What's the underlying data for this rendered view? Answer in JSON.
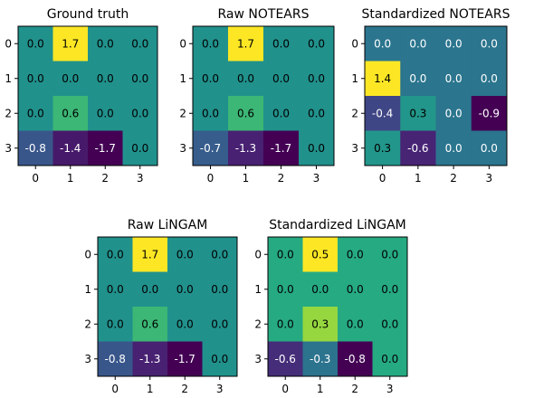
{
  "chart_data": [
    {
      "type": "heatmap",
      "title": "Ground truth",
      "x_ticks": [
        "0",
        "1",
        "2",
        "3"
      ],
      "y_ticks": [
        "0",
        "1",
        "2",
        "3"
      ],
      "values": [
        [
          0.0,
          1.7,
          0.0,
          0.0
        ],
        [
          0.0,
          0.0,
          0.0,
          0.0
        ],
        [
          0.0,
          0.6,
          0.0,
          0.0
        ],
        [
          -0.8,
          -1.4,
          -1.7,
          0.0
        ]
      ],
      "labels": [
        [
          "0.0",
          "1.7",
          "0.0",
          "0.0"
        ],
        [
          "0.0",
          "0.0",
          "0.0",
          "0.0"
        ],
        [
          "0.0",
          "0.6",
          "0.0",
          "0.0"
        ],
        [
          "-0.8",
          "-1.4",
          "-1.7",
          "0.0"
        ]
      ],
      "colormap": "viridis",
      "grid": false
    },
    {
      "type": "heatmap",
      "title": "Raw NOTEARS",
      "x_ticks": [
        "0",
        "1",
        "2",
        "3"
      ],
      "y_ticks": [
        "0",
        "1",
        "2",
        "3"
      ],
      "values": [
        [
          0.0,
          1.7,
          0.0,
          0.0
        ],
        [
          0.0,
          0.0,
          0.0,
          0.0
        ],
        [
          0.0,
          0.6,
          0.0,
          0.0
        ],
        [
          -0.7,
          -1.3,
          -1.7,
          0.0
        ]
      ],
      "labels": [
        [
          "0.0",
          "1.7",
          "0.0",
          "0.0"
        ],
        [
          "0.0",
          "0.0",
          "0.0",
          "0.0"
        ],
        [
          "0.0",
          "0.6",
          "0.0",
          "0.0"
        ],
        [
          "-0.7",
          "-1.3",
          "-1.7",
          "0.0"
        ]
      ],
      "colormap": "viridis",
      "grid": false
    },
    {
      "type": "heatmap",
      "title": "Standardized NOTEARS",
      "x_ticks": [
        "0",
        "1",
        "2",
        "3"
      ],
      "y_ticks": [
        "0",
        "1",
        "2",
        "3"
      ],
      "values": [
        [
          0.0,
          0.0,
          0.0,
          0.0
        ],
        [
          1.4,
          0.0,
          0.0,
          0.0
        ],
        [
          -0.4,
          0.3,
          0.0,
          -0.9
        ],
        [
          0.3,
          -0.6,
          0.0,
          0.0
        ]
      ],
      "labels": [
        [
          "0.0",
          "0.0",
          "0.0",
          "0.0"
        ],
        [
          "1.4",
          "0.0",
          "0.0",
          "0.0"
        ],
        [
          "-0.4",
          "0.3",
          "0.0",
          "-0.9"
        ],
        [
          "0.3",
          "-0.6",
          "0.0",
          "0.0"
        ]
      ],
      "colormap": "viridis",
      "grid": false
    },
    {
      "type": "heatmap",
      "title": "Raw LiNGAM",
      "x_ticks": [
        "0",
        "1",
        "2",
        "3"
      ],
      "y_ticks": [
        "0",
        "1",
        "2",
        "3"
      ],
      "values": [
        [
          0.0,
          1.7,
          0.0,
          0.0
        ],
        [
          0.0,
          0.0,
          0.0,
          0.0
        ],
        [
          0.0,
          0.6,
          0.0,
          0.0
        ],
        [
          -0.8,
          -1.3,
          -1.7,
          0.0
        ]
      ],
      "labels": [
        [
          "0.0",
          "1.7",
          "0.0",
          "0.0"
        ],
        [
          "0.0",
          "0.0",
          "0.0",
          "0.0"
        ],
        [
          "0.0",
          "0.6",
          "0.0",
          "0.0"
        ],
        [
          "-0.8",
          "-1.3",
          "-1.7",
          "0.0"
        ]
      ],
      "colormap": "viridis",
      "grid": false
    },
    {
      "type": "heatmap",
      "title": "Standardized LiNGAM",
      "x_ticks": [
        "0",
        "1",
        "2",
        "3"
      ],
      "y_ticks": [
        "0",
        "1",
        "2",
        "3"
      ],
      "values": [
        [
          0.0,
          0.5,
          0.0,
          0.0
        ],
        [
          0.0,
          0.0,
          0.0,
          0.0
        ],
        [
          0.0,
          0.3,
          0.0,
          0.0
        ],
        [
          -0.6,
          -0.3,
          -0.8,
          0.0
        ]
      ],
      "labels": [
        [
          "0.0",
          "0.5",
          "0.0",
          "0.0"
        ],
        [
          "0.0",
          "0.0",
          "0.0",
          "0.0"
        ],
        [
          "0.0",
          "0.3",
          "0.0",
          "0.0"
        ],
        [
          "-0.6",
          "-0.3",
          "-0.8",
          "0.0"
        ]
      ],
      "colormap": "viridis",
      "grid": false
    }
  ]
}
